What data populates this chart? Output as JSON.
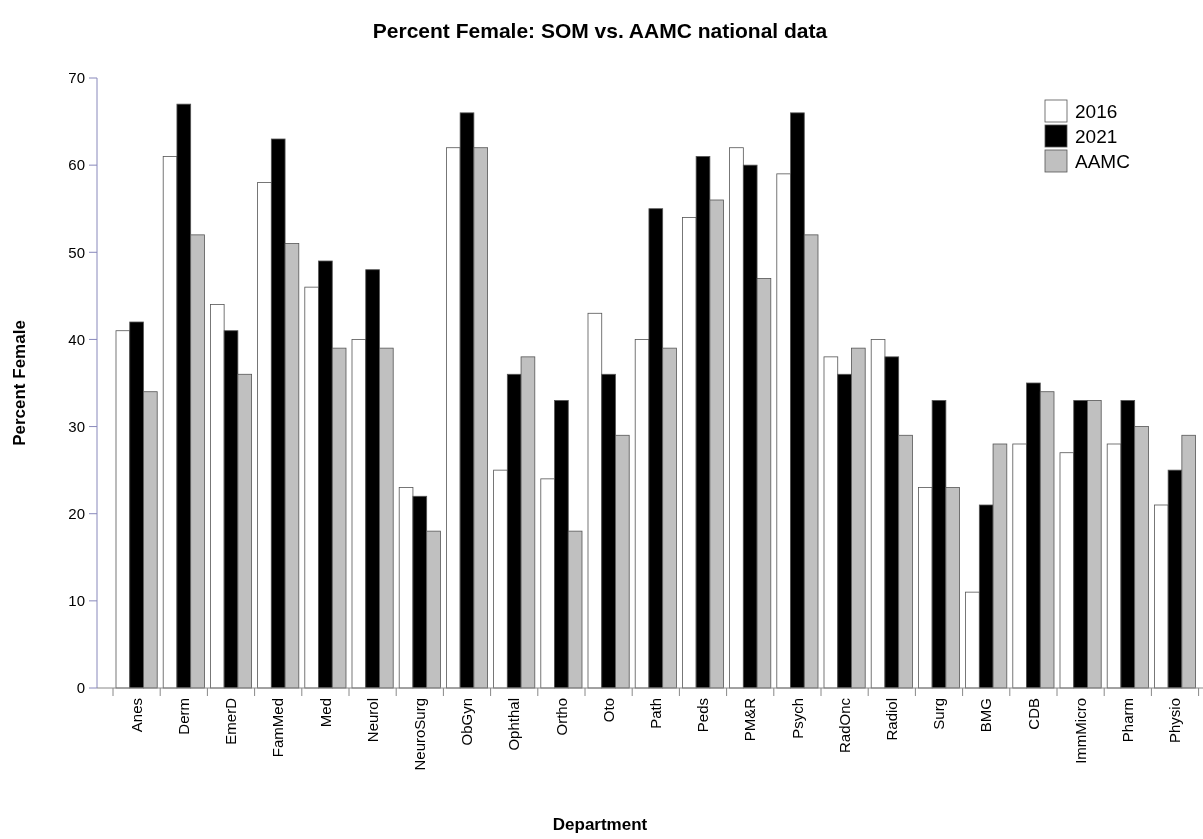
{
  "chart_data": {
    "type": "bar",
    "title": "Percent Female: SOM vs. AAMC national data",
    "xlabel": "Department",
    "ylabel": "Percent Female",
    "categories": [
      "Anes",
      "Derm",
      "EmerD",
      "FamMed",
      "Med",
      "Neurol",
      "NeuroSurg",
      "ObGyn",
      "Ophthal",
      "Ortho",
      "Oto",
      "Path",
      "Peds",
      "PM&R",
      "Psych",
      "RadOnc",
      "Radiol",
      "Surg",
      "BMG",
      "CDB",
      "ImmMicro",
      "Pharm",
      "Physio"
    ],
    "series": [
      {
        "name": "2016",
        "color": "#ffffff",
        "values": [
          41,
          61,
          44,
          58,
          46,
          40,
          23,
          62,
          25,
          24,
          43,
          40,
          54,
          62,
          59,
          38,
          40,
          23,
          11,
          28,
          27,
          28,
          21
        ]
      },
      {
        "name": "2021",
        "color": "#000000",
        "values": [
          42,
          67,
          41,
          63,
          49,
          48,
          22,
          66,
          36,
          33,
          36,
          55,
          61,
          60,
          66,
          36,
          38,
          33,
          21,
          35,
          33,
          33,
          25
        ]
      },
      {
        "name": "AAMC",
        "color": "#c0c0c0",
        "values": [
          34,
          52,
          36,
          51,
          39,
          39,
          18,
          62,
          38,
          18,
          29,
          39,
          56,
          47,
          52,
          39,
          29,
          23,
          28,
          34,
          33,
          30,
          29
        ]
      }
    ],
    "ylim": [
      0,
      70
    ],
    "yticks": [
      0,
      10,
      20,
      30,
      40,
      50,
      60,
      70
    ],
    "grid": false,
    "legend": "top right"
  }
}
